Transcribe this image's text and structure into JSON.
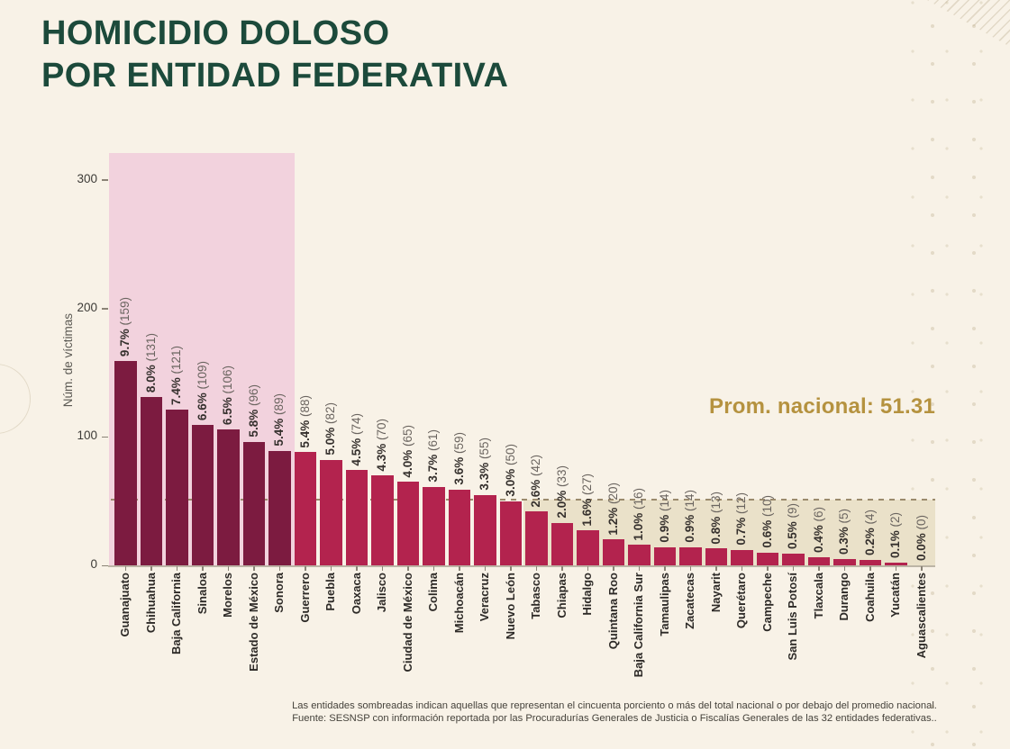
{
  "title": {
    "line1": "HOMICIDIO DOLOSO",
    "line2": "POR ENTIDAD FEDERATIVA"
  },
  "annotation": {
    "national_average_label": "Prom. nacional: 51.31"
  },
  "footnote": {
    "line1": "Las entidades sombreadas indican aquellas que representan el cincuenta porciento o más del total nacional o por debajo del promedio nacional.",
    "line2": "Fuente: SESNSP con información reportada por las Procuradurías Generales de Justicia o Fiscalías Generales de las 32 entidades federativas.."
  },
  "chart_data": {
    "type": "bar",
    "title": "HOMICIDIO DOLOSO POR ENTIDAD FEDERATIVA",
    "ylabel": "Núm. de víctimas",
    "yticks": [
      0,
      100,
      200,
      300
    ],
    "ylim": [
      0,
      321
    ],
    "grid": false,
    "national_average": 51.31,
    "categories": [
      "Guanajuato",
      "Chihuahua",
      "Baja California",
      "Sinaloa",
      "Morelos",
      "Estado de México",
      "Sonora",
      "Guerrero",
      "Puebla",
      "Oaxaca",
      "Jalisco",
      "Ciudad de México",
      "Colima",
      "Michoacán",
      "Veracruz",
      "Nuevo León",
      "Tabasco",
      "Chiapas",
      "Hidalgo",
      "Quintana Roo",
      "Baja California Sur",
      "Tamaulipas",
      "Zacatecas",
      "Nayarit",
      "Querétaro",
      "Campeche",
      "San Luis Potosí",
      "Tlaxcala",
      "Durango",
      "Coahuila",
      "Yucatán",
      "Aguascalientes"
    ],
    "values": [
      159,
      131,
      121,
      109,
      106,
      96,
      89,
      88,
      82,
      74,
      70,
      65,
      61,
      59,
      55,
      50,
      42,
      33,
      27,
      20,
      16,
      14,
      14,
      13,
      12,
      10,
      9,
      6,
      5,
      4,
      2,
      0
    ],
    "pct_labels": [
      "9.7%",
      "8.0%",
      "7.4%",
      "6.6%",
      "6.5%",
      "5.8%",
      "5.4%",
      "5.4%",
      "5.0%",
      "4.5%",
      "4.3%",
      "4.0%",
      "3.7%",
      "3.6%",
      "3.3%",
      "3.0%",
      "2.6%",
      "2.0%",
      "1.6%",
      "1.2%",
      "1.0%",
      "0.9%",
      "0.9%",
      "0.8%",
      "0.7%",
      "0.6%",
      "0.5%",
      "0.4%",
      "0.3%",
      "0.2%",
      "0.1%",
      "0.0%"
    ],
    "dark_bar_count": 7,
    "beige_band_start_index": 16,
    "colors": {
      "background": "#f8f2e7",
      "bar_dark": "#7c1b40",
      "bar_light": "#b3234e",
      "band_pink": "#f2d2dd",
      "band_beige": "#eae1c9",
      "avg_line": "#9b8a6d",
      "title_green": "#1c4a3b",
      "avg_gold": "#b5923f"
    }
  }
}
